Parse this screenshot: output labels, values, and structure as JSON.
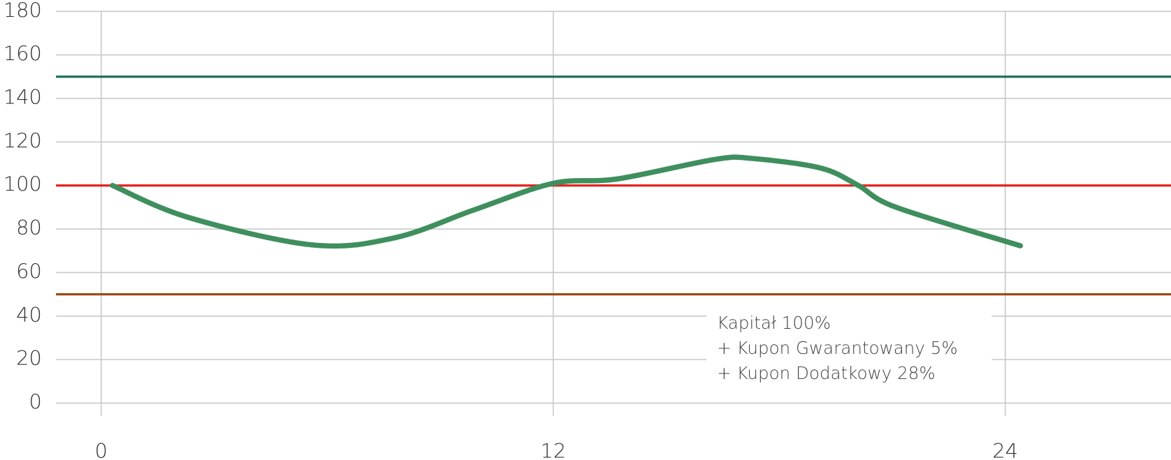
{
  "chart_data": {
    "type": "line",
    "x": [
      0.3,
      2.3,
      5.6,
      7.8,
      9.9,
      12,
      13.7,
      16.3,
      17.3,
      19.1,
      20.1,
      21.1,
      24.4
    ],
    "series": [
      {
        "color": "#3f8f5e",
        "values": [
          100,
          85.4,
          72.7,
          76,
          88.8,
          101,
          103,
          112,
          112.4,
          108,
          100,
          90,
          72.3
        ]
      }
    ],
    "reference_lines": [
      {
        "value": 150,
        "color": "#1e6b5c"
      },
      {
        "value": 100,
        "color": "#e3211c"
      },
      {
        "value": 50,
        "color": "#9a4c15"
      }
    ],
    "xlim": [
      -1.2,
      28.4
    ],
    "xticks": [
      0,
      12,
      24
    ],
    "ylim": [
      0,
      180
    ],
    "yticks": [
      0,
      20,
      40,
      60,
      80,
      100,
      120,
      140,
      160,
      180
    ],
    "grid": true,
    "annotations": [
      "Kapitał 100%",
      "+ Kupon Gwarantowany 5%",
      "+ Kupon Dodatkowy 28%"
    ]
  }
}
